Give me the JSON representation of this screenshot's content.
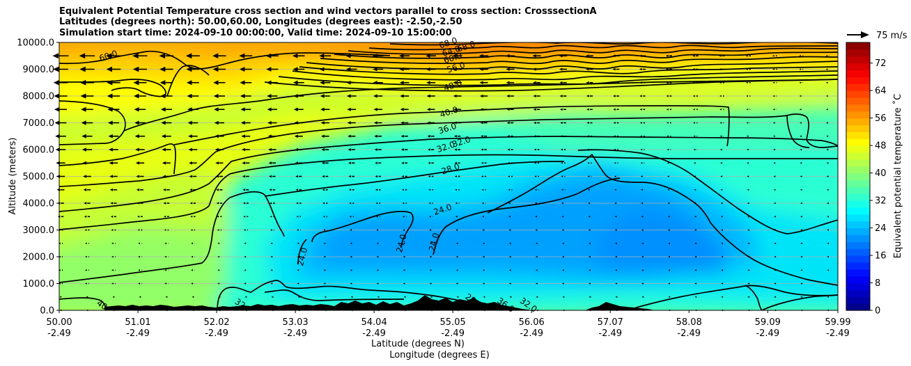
{
  "chart_data": {
    "type": "heatmap",
    "title_lines": [
      "Equivalent Potential Temperature cross section and wind vectors parallel to cross section: CrosssectionA",
      "Latitudes (degrees north): 50.00,60.00, Longitudes (degrees east): -2.50,-2.50",
      "Simulation start time: 2024-09-10 00:00:00, Valid time: 2024-09-10 15:00:00"
    ],
    "xlabel_lines": [
      "Latitude (degrees N)",
      "Longitude (degrees E)"
    ],
    "ylabel": "Altitude (meters)",
    "x_ticks": [
      {
        "lat": "50.00",
        "lon": "-2.49"
      },
      {
        "lat": "51.01",
        "lon": "-2.49"
      },
      {
        "lat": "52.02",
        "lon": "-2.49"
      },
      {
        "lat": "53.03",
        "lon": "-2.49"
      },
      {
        "lat": "54.04",
        "lon": "-2.49"
      },
      {
        "lat": "55.05",
        "lon": "-2.49"
      },
      {
        "lat": "56.06",
        "lon": "-2.49"
      },
      {
        "lat": "57.07",
        "lon": "-2.49"
      },
      {
        "lat": "58.08",
        "lon": "-2.49"
      },
      {
        "lat": "59.09",
        "lon": "-2.49"
      },
      {
        "lat": "59.99",
        "lon": "-2.49"
      }
    ],
    "xlim": [
      50.0,
      59.99
    ],
    "y_ticks": [
      "0.0",
      "1000.0",
      "2000.0",
      "3000.0",
      "4000.0",
      "5000.0",
      "6000.0",
      "7000.0",
      "8000.0",
      "9000.0",
      "10000.0"
    ],
    "ylim": [
      0,
      10000
    ],
    "grid": "horizontal",
    "colorbar": {
      "label": "Equivalent potential temperature $^\\circ$C",
      "label_text": "Equivalent potential temperature ˚C",
      "ticks": [
        "0",
        "8",
        "16",
        "24",
        "32",
        "40",
        "48",
        "56",
        "64",
        "72"
      ],
      "range": [
        0,
        78
      ],
      "colormap": "jet"
    },
    "quiver_key": {
      "label": "75 m/s",
      "value": 75
    },
    "contour_labels": [
      {
        "text": "60.0",
        "lat": 50.63,
        "alt": 9500
      },
      {
        "text": "68.0",
        "lat": 54.99,
        "alt": 9980
      },
      {
        "text": "68.0",
        "lat": 55.22,
        "alt": 9850
      },
      {
        "text": "64.0",
        "lat": 55.03,
        "alt": 9680
      },
      {
        "text": "60.0",
        "lat": 55.05,
        "alt": 9420
      },
      {
        "text": "56.0",
        "lat": 55.09,
        "alt": 9070
      },
      {
        "text": "48.0",
        "lat": 55.05,
        "alt": 8390
      },
      {
        "text": "40.0",
        "lat": 55.0,
        "alt": 7400
      },
      {
        "text": "36.0",
        "lat": 54.98,
        "alt": 6790
      },
      {
        "text": "32.0",
        "lat": 54.96,
        "alt": 6100
      },
      {
        "text": "32.0",
        "lat": 55.16,
        "alt": 6290
      },
      {
        "text": "28.0",
        "lat": 55.02,
        "alt": 5280
      },
      {
        "text": "24.0",
        "lat": 54.92,
        "alt": 3760
      },
      {
        "text": "24.0",
        "lat": 53.12,
        "alt": 2000
      },
      {
        "text": "24.0",
        "lat": 54.39,
        "alt": 2500
      },
      {
        "text": "24.0",
        "lat": 54.81,
        "alt": 2550
      },
      {
        "text": "40",
        "lat": 50.55,
        "alt": 200
      },
      {
        "text": "32",
        "lat": 52.32,
        "alt": 250
      },
      {
        "text": "28.0",
        "lat": 55.32,
        "alt": 350
      },
      {
        "text": "36.0",
        "lat": 55.73,
        "alt": 200
      },
      {
        "text": "32.0",
        "lat": 56.02,
        "alt": 200
      }
    ]
  }
}
